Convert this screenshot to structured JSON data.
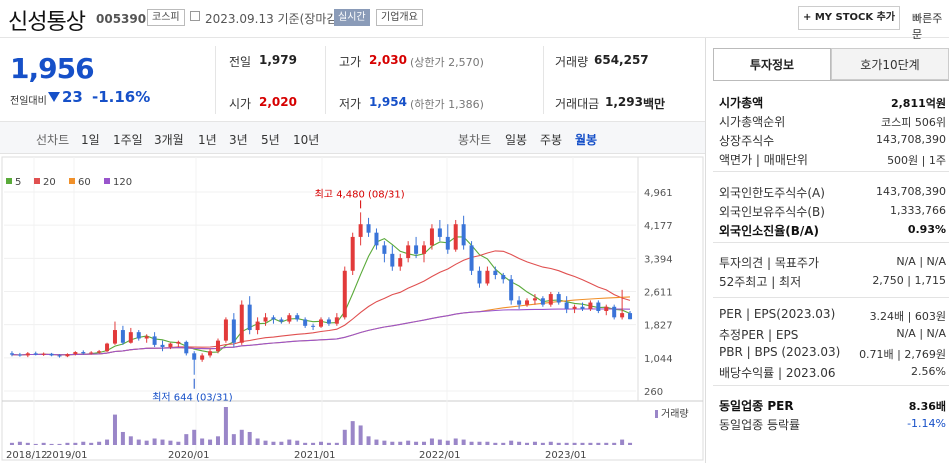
{
  "header": {
    "name": "신성통상",
    "code": "005390",
    "market": "코스피",
    "base_date": "2023.09.13 기준(장마감)",
    "realtime": "실시간",
    "overview": "기업개요",
    "mystock": "+ MY STOCK 추가",
    "fast_order": "빠른주문"
  },
  "price": {
    "current": "1,956",
    "change_label": "전일대비",
    "change": "23",
    "change_pct": "-1.16%",
    "prev_close_label": "전일",
    "prev_close": "1,979",
    "high_label": "고가",
    "high": "2,030",
    "upper_limit": "(상한가 2,570)",
    "volume_label": "거래량",
    "volume": "654,257",
    "open_label": "시가",
    "open": "2,020",
    "low_label": "저가",
    "low": "1,954",
    "lower_limit": "(하한가 1,386)",
    "amount_label": "거래대금",
    "amount": "1,293",
    "amount_unit": "백만"
  },
  "periods": {
    "line_label": "선차트",
    "line": [
      "1일",
      "1주일",
      "3개월",
      "1년",
      "3년",
      "5년",
      "10년"
    ],
    "candle_label": "봉차트",
    "candle": [
      "일봉",
      "주봉",
      "월봉"
    ],
    "selected": "월봉"
  },
  "chart_data": {
    "type": "candlestick",
    "ma_legend": [
      {
        "name": "5",
        "color": "#5aaa3a"
      },
      {
        "name": "20",
        "color": "#e05050"
      },
      {
        "name": "60",
        "color": "#f0902a"
      },
      {
        "name": "120",
        "color": "#9955cc"
      }
    ],
    "y_ticks": [
      "4,961",
      "4,177",
      "3,394",
      "2,611",
      "1,827",
      "1,044",
      "260"
    ],
    "ylim": [
      260,
      4961
    ],
    "x_ticks": [
      "2018/12",
      "2019/01",
      "2020/01",
      "2021/01",
      "2022/01",
      "2023/01"
    ],
    "high_annotation": "최고 4,480 (08/31)",
    "low_annotation": "최저 644 (03/31)",
    "volume_label": "거래량",
    "up_color": "#e23a3a",
    "down_color": "#3a74d8",
    "candles": [
      [
        1150,
        1200,
        1080,
        1120
      ],
      [
        1120,
        1160,
        1070,
        1100
      ],
      [
        1100,
        1180,
        1060,
        1150
      ],
      [
        1150,
        1190,
        1100,
        1120
      ],
      [
        1120,
        1170,
        1090,
        1140
      ],
      [
        1140,
        1160,
        1080,
        1100
      ],
      [
        1100,
        1130,
        1050,
        1080
      ],
      [
        1080,
        1150,
        1060,
        1130
      ],
      [
        1130,
        1200,
        1100,
        1180
      ],
      [
        1180,
        1220,
        1120,
        1150
      ],
      [
        1150,
        1200,
        1120,
        1170
      ],
      [
        1170,
        1230,
        1140,
        1200
      ],
      [
        1200,
        1400,
        1180,
        1380
      ],
      [
        1380,
        1900,
        1350,
        1700
      ],
      [
        1700,
        1800,
        1350,
        1400
      ],
      [
        1400,
        1750,
        1380,
        1650
      ],
      [
        1650,
        1700,
        1450,
        1500
      ],
      [
        1500,
        1600,
        1400,
        1550
      ],
      [
        1550,
        1650,
        1300,
        1350
      ],
      [
        1350,
        1450,
        1200,
        1300
      ],
      [
        1300,
        1400,
        1250,
        1380
      ],
      [
        1380,
        1450,
        1300,
        1420
      ],
      [
        1420,
        1450,
        1100,
        1150
      ],
      [
        1150,
        1200,
        644,
        1000
      ],
      [
        1000,
        1150,
        950,
        1100
      ],
      [
        1100,
        1250,
        1050,
        1200
      ],
      [
        1200,
        1500,
        1150,
        1450
      ],
      [
        1450,
        2000,
        1400,
        1950
      ],
      [
        1950,
        2100,
        1300,
        1400
      ],
      [
        1400,
        2400,
        1350,
        2300
      ],
      [
        2300,
        2500,
        1600,
        1700
      ],
      [
        1700,
        2000,
        1600,
        1900
      ],
      [
        1900,
        2100,
        1800,
        2000
      ],
      [
        2000,
        2050,
        1850,
        1950
      ],
      [
        1950,
        2000,
        1850,
        1900
      ],
      [
        1900,
        2100,
        1850,
        2050
      ],
      [
        2050,
        2100,
        1900,
        1950
      ],
      [
        1950,
        2000,
        1750,
        1800
      ],
      [
        1800,
        1850,
        1700,
        1780
      ],
      [
        1780,
        2000,
        1750,
        1950
      ],
      [
        1950,
        2000,
        1800,
        1850
      ],
      [
        1850,
        2100,
        1800,
        2000
      ],
      [
        2000,
        3200,
        1950,
        3100
      ],
      [
        3100,
        4000,
        3000,
        3900
      ],
      [
        3900,
        4480,
        3700,
        4200
      ],
      [
        4200,
        4350,
        3900,
        4000
      ],
      [
        4000,
        4100,
        3600,
        3700
      ],
      [
        3700,
        3800,
        3300,
        3500
      ],
      [
        3500,
        3700,
        3100,
        3200
      ],
      [
        3200,
        3500,
        3100,
        3400
      ],
      [
        3400,
        3800,
        3300,
        3700
      ],
      [
        3700,
        3900,
        3400,
        3500
      ],
      [
        3500,
        3800,
        3300,
        3700
      ],
      [
        3700,
        4200,
        3600,
        4100
      ],
      [
        4100,
        4300,
        3800,
        3900
      ],
      [
        3900,
        4200,
        3500,
        3600
      ],
      [
        3600,
        4300,
        3550,
        4200
      ],
      [
        4200,
        4400,
        3600,
        3700
      ],
      [
        3700,
        3800,
        3000,
        3100
      ],
      [
        3100,
        3200,
        2700,
        2800
      ],
      [
        2800,
        3200,
        2750,
        3100
      ],
      [
        3100,
        3200,
        2900,
        3000
      ],
      [
        3000,
        3050,
        2800,
        2900
      ],
      [
        2900,
        3000,
        2300,
        2400
      ],
      [
        2400,
        2500,
        2200,
        2300
      ],
      [
        2300,
        2450,
        2250,
        2400
      ],
      [
        2400,
        2550,
        2300,
        2450
      ],
      [
        2450,
        2500,
        2250,
        2300
      ],
      [
        2300,
        2600,
        2250,
        2550
      ],
      [
        2550,
        2600,
        2300,
        2350
      ],
      [
        2350,
        2500,
        2100,
        2200
      ],
      [
        2200,
        2300,
        2100,
        2250
      ],
      [
        2250,
        2350,
        2150,
        2200
      ],
      [
        2200,
        2400,
        2150,
        2350
      ],
      [
        2350,
        2400,
        2100,
        2150
      ],
      [
        2150,
        2300,
        2050,
        2250
      ],
      [
        2250,
        2300,
        1950,
        2000
      ],
      [
        2000,
        2650,
        1950,
        2100
      ],
      [
        2100,
        2150,
        1954,
        1956
      ]
    ],
    "volumes": [
      2,
      3,
      2,
      1,
      2,
      1,
      1,
      2,
      2,
      3,
      2,
      3,
      5,
      28,
      12,
      8,
      5,
      4,
      6,
      5,
      4,
      3,
      10,
      14,
      6,
      5,
      8,
      35,
      10,
      14,
      12,
      6,
      4,
      3,
      3,
      5,
      4,
      2,
      2,
      3,
      2,
      2,
      14,
      22,
      18,
      8,
      5,
      4,
      3,
      3,
      4,
      3,
      3,
      6,
      5,
      4,
      6,
      5,
      3,
      3,
      3,
      2,
      2,
      4,
      3,
      2,
      3,
      2,
      3,
      2,
      2,
      2,
      2,
      2,
      2,
      2,
      2,
      5,
      2
    ]
  },
  "right_panel": {
    "tab1": "투자정보",
    "tab2": "호가10단계",
    "rows1": [
      {
        "label": "시가총액",
        "value": "2,811억원",
        "bold": true
      },
      {
        "label": "시가총액순위",
        "value": "코스피 506위"
      },
      {
        "label": "상장주식수",
        "value": "143,708,390"
      },
      {
        "label": "액면가 | 매매단위",
        "value": "500원 | 1주"
      }
    ],
    "rows2": [
      {
        "label": "외국인한도주식수(A)",
        "value": "143,708,390"
      },
      {
        "label": "외국인보유주식수(B)",
        "value": "1,333,766"
      },
      {
        "label": "외국인소진율(B/A)",
        "value": "0.93%",
        "bold": true
      }
    ],
    "rows3": [
      {
        "label": "투자의견 | 목표주가",
        "value": "N/A | N/A"
      },
      {
        "label": "52주최고 | 최저",
        "value": "2,750 | 1,715"
      }
    ],
    "rows4": [
      {
        "label": "PER | EPS(2023.03)",
        "value": "3.24배 | 603원"
      },
      {
        "label": "추정PER | EPS",
        "value": "N/A | N/A"
      },
      {
        "label": "PBR | BPS (2023.03)",
        "value": "0.71배 | 2,769원"
      },
      {
        "label": "배당수익률 | 2023.06",
        "value": "2.56%"
      }
    ],
    "rows5": [
      {
        "label": "동일업종 PER",
        "value": "8.36배",
        "bold": true
      },
      {
        "label": "동일업종 등락률",
        "value": "-1.14%",
        "blue": true
      }
    ]
  }
}
